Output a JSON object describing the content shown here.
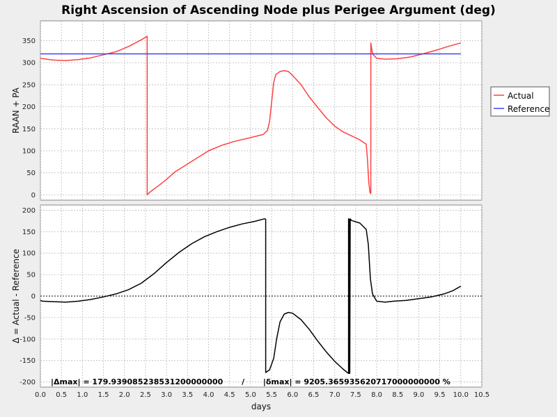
{
  "chart_data": {
    "type": "line",
    "title": "Right Ascension of Ascending Node plus Perigee Argument (deg)",
    "xlabel": "days",
    "xlim": [
      0,
      10.5
    ],
    "xticks": [
      0,
      0.5,
      1,
      1.5,
      2,
      2.5,
      3,
      3.5,
      4,
      4.5,
      5,
      5.5,
      6,
      6.5,
      7,
      7.5,
      8,
      8.5,
      9,
      9.5,
      10,
      10.5
    ],
    "grid": true,
    "panels": [
      {
        "ylabel": "RAAN + PA",
        "ylim": [
          -12,
          395
        ],
        "yticks": [
          0,
          50,
          100,
          150,
          200,
          250,
          300,
          350
        ],
        "legend": {
          "placement": "right",
          "entries": [
            {
              "label": "Actual",
              "color": "#ff4040"
            },
            {
              "label": "Reference",
              "color": "#4040ff"
            }
          ]
        },
        "series": [
          {
            "name": "Actual",
            "color": "#ff4040",
            "x": [
              0,
              0.3,
              0.6,
              0.9,
              1.2,
              1.5,
              1.8,
              2.1,
              2.4,
              2.54,
              2.54,
              2.6,
              2.8,
              3.0,
              3.2,
              3.5,
              3.8,
              4.0,
              4.3,
              4.6,
              5.0,
              5.3,
              5.4,
              5.45,
              5.5,
              5.55,
              5.6,
              5.7,
              5.8,
              5.9,
              6.0,
              6.2,
              6.4,
              6.6,
              6.8,
              7.0,
              7.2,
              7.4,
              7.6,
              7.75,
              7.78,
              7.81,
              7.84,
              7.86,
              7.86,
              7.9,
              8.0,
              8.2,
              8.5,
              8.8,
              9.1,
              9.4,
              9.7,
              10.0
            ],
            "y": [
              310,
              306,
              305,
              307,
              311,
              318,
              325,
              337,
              352,
              360,
              0,
              6,
              20,
              35,
              52,
              70,
              88,
              100,
              112,
              121,
              130,
              137,
              146,
              166,
              210,
              255,
              273,
              280,
              282,
              280,
              271,
              250,
              222,
              198,
              175,
              156,
              143,
              134,
              125,
              115,
              80,
              30,
              5,
              3,
              345,
              320,
              310,
              308,
              309,
              313,
              320,
              328,
              337,
              345
            ]
          },
          {
            "name": "Reference",
            "color": "#4040ff",
            "x": [
              0,
              10.0
            ],
            "y": [
              320,
              320
            ]
          }
        ]
      },
      {
        "ylabel": "Δ = Actual - Reference",
        "ylim": [
          -212,
          212
        ],
        "yticks": [
          -200,
          -150,
          -100,
          -50,
          0,
          50,
          100,
          150,
          200
        ],
        "zero_line": true,
        "annotation": "|Δmax| = 179.939085238531200000000       /       |δmax| = 9205.365935620717000000000 %",
        "series": [
          {
            "name": "Δ",
            "color": "#000000",
            "x": [
              0,
              0.05,
              0.3,
              0.6,
              0.9,
              1.2,
              1.5,
              1.8,
              2.1,
              2.4,
              2.7,
              3.0,
              3.3,
              3.6,
              3.9,
              4.2,
              4.5,
              4.8,
              5.1,
              5.33,
              5.36,
              5.36,
              5.45,
              5.55,
              5.62,
              5.7,
              5.8,
              5.9,
              6.0,
              6.2,
              6.4,
              6.6,
              6.8,
              7.0,
              7.2,
              7.3,
              7.33,
              7.33,
              7.35,
              7.35,
              7.36,
              7.37,
              7.37,
              7.4,
              7.6,
              7.75,
              7.8,
              7.85,
              7.9,
              8.0,
              8.2,
              8.4,
              8.7,
              9.0,
              9.3,
              9.6,
              9.8,
              10.0
            ],
            "y": [
              -10,
              -12,
              -13,
              -14,
              -12,
              -8,
              -2,
              5,
              15,
              30,
              52,
              78,
              102,
              122,
              138,
              150,
              160,
              168,
              174,
              180,
              179,
              -178,
              -172,
              -145,
              -100,
              -60,
              -42,
              -38,
              -40,
              -55,
              -78,
              -105,
              -130,
              -152,
              -170,
              -178,
              -180,
              180,
              178,
              -180,
              -180,
              178,
              180,
              176,
              170,
              155,
              120,
              40,
              5,
              -12,
              -14,
              -12,
              -10,
              -6,
              -2,
              5,
              12,
              23
            ]
          }
        ]
      }
    ]
  }
}
